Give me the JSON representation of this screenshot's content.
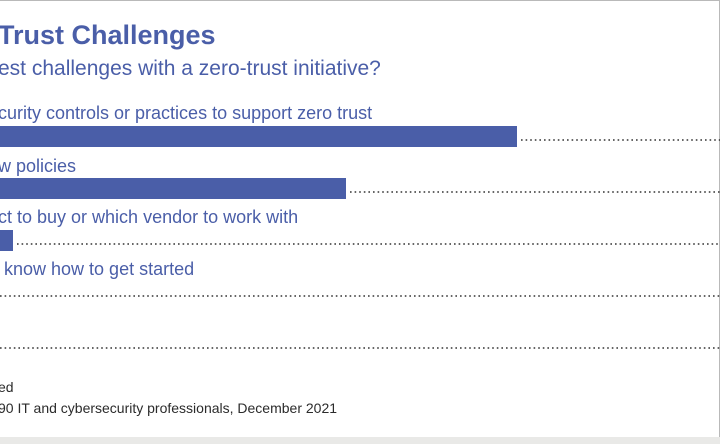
{
  "title": "Trust Challenges",
  "subtitle": "est challenges with a zero-trust initiative?",
  "notes": {
    "line1": "ed",
    "line2": "90 IT and cybersecurity professionals, December 2021"
  },
  "colors": {
    "bar": "#4a5ea8",
    "text": "#4a5ea8",
    "leader": "#333333"
  },
  "chart_data": {
    "type": "bar",
    "orientation": "horizontal",
    "categories": [
      "curity controls or practices to support zero trust",
      "w policies",
      "ct to buy or which vendor to work with",
      "know how to get started",
      ""
    ],
    "values": [
      517,
      346,
      13,
      0,
      0
    ],
    "title": "Trust Challenges",
    "xlim": [
      0,
      720
    ],
    "legend": "none",
    "grid": false
  }
}
